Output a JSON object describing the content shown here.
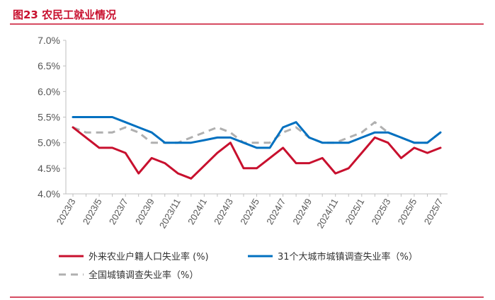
{
  "figure": {
    "title": "图23  农民工就业情况",
    "accent_color": "#c8102e"
  },
  "chart_data": {
    "type": "line",
    "title": "图23  农民工就业情况",
    "xlabel": "",
    "ylabel": "",
    "ylim": [
      4.0,
      7.0
    ],
    "y_ticks": [
      "7.0%",
      "6.5%",
      "6.0%",
      "5.5%",
      "5.0%",
      "4.5%",
      "4.0%"
    ],
    "x": [
      "2023/3",
      "2023/4",
      "2023/5",
      "2023/6",
      "2023/7",
      "2023/8",
      "2023/9",
      "2023/10",
      "2023/11",
      "2023/12",
      "2024/1",
      "2024/2",
      "2024/3",
      "2024/4",
      "2024/5",
      "2024/6",
      "2024/7",
      "2024/8",
      "2024/9",
      "2024/10",
      "2024/11",
      "2024/12",
      "2025/1",
      "2025/2",
      "2025/3",
      "2025/4",
      "2025/5",
      "2025/6",
      "2025/7"
    ],
    "x_tick_labels": [
      "2023/3",
      "2023/5",
      "2023/7",
      "2023/9",
      "2023/11",
      "2024/1",
      "2024/3",
      "2024/5",
      "2024/7",
      "2024/9",
      "2024/11",
      "2025/1",
      "2025/3",
      "2025/5",
      "2025/7"
    ],
    "grid": false,
    "legend_position": "bottom",
    "series": [
      {
        "name": "外来农业户籍人口失业率 (%)",
        "color": "#c8102e",
        "style": "solid",
        "values": [
          5.3,
          5.1,
          4.9,
          4.9,
          4.8,
          4.4,
          4.7,
          4.6,
          4.4,
          4.3,
          4.55,
          4.8,
          5.0,
          4.5,
          4.5,
          4.7,
          4.9,
          4.6,
          4.6,
          4.7,
          4.4,
          4.5,
          4.8,
          5.1,
          5.0,
          4.7,
          4.9,
          4.8,
          4.9
        ]
      },
      {
        "name": "31个大城市城镇调查失业率（%）",
        "color": "#0070c0",
        "style": "solid",
        "values": [
          5.5,
          5.5,
          5.5,
          5.5,
          5.4,
          5.3,
          5.2,
          5.0,
          5.0,
          5.0,
          5.05,
          5.1,
          5.1,
          5.0,
          4.9,
          4.9,
          5.3,
          5.4,
          5.1,
          5.0,
          5.0,
          5.0,
          5.1,
          5.2,
          5.2,
          5.1,
          5.0,
          5.0,
          5.2
        ]
      },
      {
        "name": "全国城镇调查失业率（%）",
        "color": "#b0b0b0",
        "style": "dashed",
        "values": [
          5.3,
          5.2,
          5.2,
          5.2,
          5.3,
          5.2,
          5.0,
          5.0,
          5.0,
          5.1,
          5.2,
          5.3,
          5.2,
          5.0,
          5.0,
          5.0,
          5.2,
          5.3,
          5.1,
          5.0,
          5.0,
          5.1,
          5.2,
          5.4,
          5.2,
          5.1,
          5.0,
          5.0,
          5.2
        ]
      }
    ]
  }
}
